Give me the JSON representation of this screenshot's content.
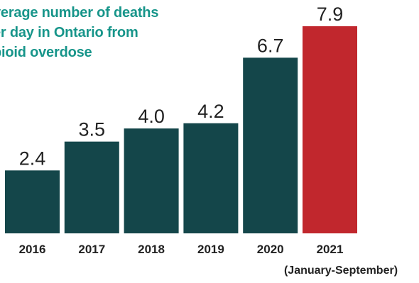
{
  "chart_data": {
    "type": "bar",
    "title": "Average number of deaths per day in Ontario from opioid overdose",
    "title_lines": [
      "verage number of deaths",
      "er day in Ontario from",
      "pioid overdose"
    ],
    "categories": [
      "2016",
      "2017",
      "2018",
      "2019",
      "2020",
      "2021"
    ],
    "values": [
      2.4,
      3.5,
      4.0,
      4.2,
      6.7,
      7.9
    ],
    "value_labels": [
      "2.4",
      "3.5",
      "4.0",
      "4.2",
      "6.7",
      "7.9"
    ],
    "category_note": "(January-September)",
    "xlabel": "",
    "ylabel": "",
    "ylim": [
      0,
      8
    ],
    "grid": false,
    "legend": "none",
    "colors": {
      "bar": "#14464a",
      "highlight_bar": "#c1272d",
      "title": "#17958a",
      "axis_text": "#222222"
    },
    "highlight_category": "2021"
  }
}
